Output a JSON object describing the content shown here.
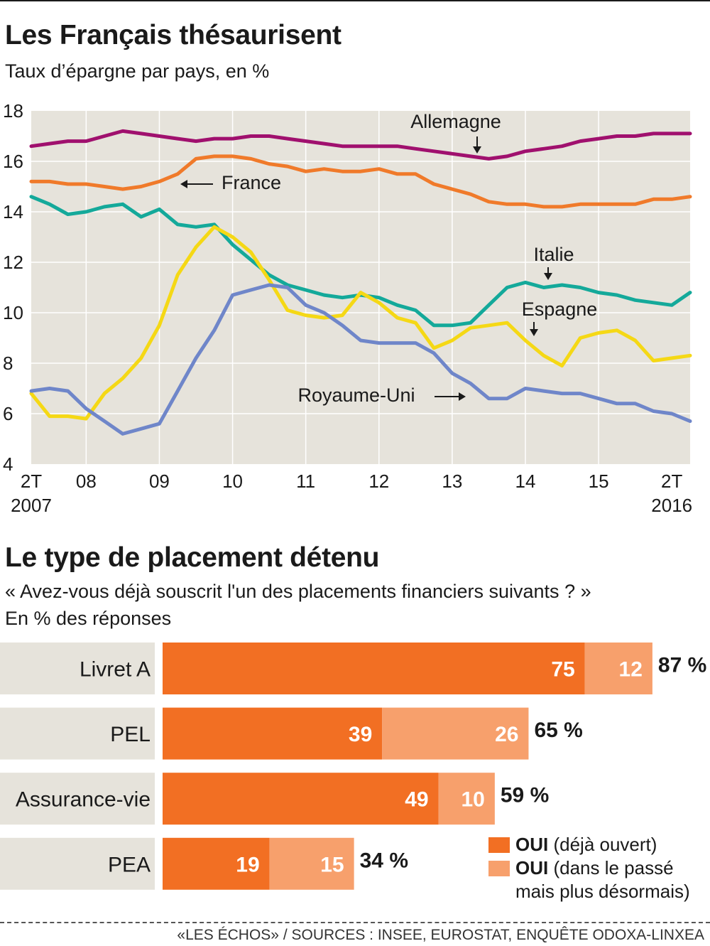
{
  "chart_data": [
    {
      "type": "line",
      "title": "Les Français thésaurisent",
      "subtitle": "Taux d’épargne par pays, en %",
      "ylim": [
        4,
        18
      ],
      "yticks": [
        4,
        6,
        8,
        10,
        12,
        14,
        16,
        18
      ],
      "xlim": [
        2007.25,
        2016.25
      ],
      "xticks": [
        {
          "x": 2007.25,
          "label": "2T",
          "label2": "2007"
        },
        {
          "x": 2008,
          "label": "08"
        },
        {
          "x": 2009,
          "label": "09"
        },
        {
          "x": 2010,
          "label": "10"
        },
        {
          "x": 2011,
          "label": "11"
        },
        {
          "x": 2012,
          "label": "12"
        },
        {
          "x": 2013,
          "label": "13"
        },
        {
          "x": 2014,
          "label": "14"
        },
        {
          "x": 2015,
          "label": "15"
        },
        {
          "x": 2016,
          "label": "2T",
          "label2": "2016"
        }
      ],
      "grid": true,
      "x": [
        2007.25,
        2007.5,
        2007.75,
        2008.0,
        2008.25,
        2008.5,
        2008.75,
        2009.0,
        2009.25,
        2009.5,
        2009.75,
        2010.0,
        2010.25,
        2010.5,
        2010.75,
        2011.0,
        2011.25,
        2011.5,
        2011.75,
        2012.0,
        2012.25,
        2012.5,
        2012.75,
        2013.0,
        2013.25,
        2013.5,
        2013.75,
        2014.0,
        2014.25,
        2014.5,
        2014.75,
        2015.0,
        2015.25,
        2015.5,
        2015.75,
        2016.0,
        2016.25
      ],
      "series": [
        {
          "name": "Allemagne",
          "color": "#a0106e",
          "values": [
            16.6,
            16.7,
            16.8,
            16.8,
            17.0,
            17.2,
            17.1,
            17.0,
            16.9,
            16.8,
            16.9,
            16.9,
            17.0,
            17.0,
            16.9,
            16.8,
            16.7,
            16.6,
            16.6,
            16.6,
            16.6,
            16.5,
            16.4,
            16.3,
            16.2,
            16.1,
            16.2,
            16.4,
            16.5,
            16.6,
            16.8,
            16.9,
            17.0,
            17.0,
            17.1,
            17.1,
            17.1
          ]
        },
        {
          "name": "France",
          "color": "#f07a2a",
          "values": [
            15.2,
            15.2,
            15.1,
            15.1,
            15.0,
            14.9,
            15.0,
            15.2,
            15.5,
            16.1,
            16.2,
            16.2,
            16.1,
            15.9,
            15.8,
            15.6,
            15.7,
            15.6,
            15.6,
            15.7,
            15.5,
            15.5,
            15.1,
            14.9,
            14.7,
            14.4,
            14.3,
            14.3,
            14.2,
            14.2,
            14.3,
            14.3,
            14.3,
            14.3,
            14.5,
            14.5,
            14.6
          ]
        },
        {
          "name": "Italie",
          "color": "#14a99a",
          "values": [
            14.6,
            14.3,
            13.9,
            14.0,
            14.2,
            14.3,
            13.8,
            14.1,
            13.5,
            13.4,
            13.5,
            12.7,
            12.1,
            11.5,
            11.1,
            10.9,
            10.7,
            10.6,
            10.7,
            10.6,
            10.3,
            10.1,
            9.5,
            9.5,
            9.6,
            10.3,
            11.0,
            11.2,
            11.0,
            11.1,
            11.0,
            10.8,
            10.7,
            10.5,
            10.4,
            10.3,
            10.8
          ]
        },
        {
          "name": "Espagne",
          "color": "#f5d815",
          "values": [
            6.8,
            5.9,
            5.9,
            5.8,
            6.8,
            7.4,
            8.2,
            9.5,
            11.5,
            12.6,
            13.4,
            13.0,
            12.4,
            11.3,
            10.1,
            9.9,
            9.8,
            9.9,
            10.8,
            10.4,
            9.8,
            9.6,
            8.6,
            8.9,
            9.4,
            9.5,
            9.6,
            8.9,
            8.3,
            7.9,
            9.0,
            9.2,
            9.3,
            8.9,
            8.1,
            8.2,
            8.3
          ]
        },
        {
          "name": "Royaume-Uni",
          "color": "#6f86c9",
          "values": [
            6.9,
            7.0,
            6.9,
            6.2,
            5.7,
            5.2,
            5.4,
            5.6,
            6.9,
            8.2,
            9.3,
            10.7,
            10.9,
            11.1,
            11.0,
            10.3,
            10.0,
            9.5,
            8.9,
            8.8,
            8.8,
            8.8,
            8.4,
            7.6,
            7.2,
            6.6,
            6.6,
            7.0,
            6.9,
            6.8,
            6.8,
            6.6,
            6.4,
            6.4,
            6.1,
            6.0,
            5.7
          ]
        }
      ]
    },
    {
      "type": "bar",
      "title": "Le type de placement détenu",
      "question": "« Avez-vous déjà souscrit l'un des placements financiers suivants ? »",
      "unit": "En % des réponses",
      "orientation": "horizontal",
      "stacked": true,
      "xlim": [
        0,
        100
      ],
      "categories": [
        "Livret A",
        "PEL",
        "Assurance-vie",
        "PEA"
      ],
      "series": [
        {
          "name": "OUI (déjà ouvert)",
          "color": "#f26f23",
          "values": [
            75,
            39,
            49,
            19
          ]
        },
        {
          "name": "OUI (dans le passé mais plus désormais)",
          "color": "#f7a06c",
          "values": [
            12,
            26,
            10,
            15
          ]
        }
      ],
      "totals": [
        "87 %",
        "65 %",
        "59 %",
        "34 %"
      ],
      "legend": [
        {
          "bold": "OUI",
          "rest": " (déjà ouvert)",
          "color": "#f26f23"
        },
        {
          "bold": "OUI",
          "rest": " (dans le passé",
          "rest2": "mais plus désormais)",
          "color": "#f7a06c"
        }
      ]
    }
  ],
  "source": "«LES ÉCHOS» / SOURCES : INSEE, EUROSTAT, ENQUÊTE ODOXA-LINXEA"
}
